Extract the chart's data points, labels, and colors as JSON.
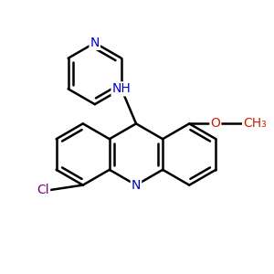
{
  "bg_color": "#ffffff",
  "bond_color": "#000000",
  "bond_width": 1.8,
  "atom_colors": {
    "N": "#0000cc",
    "O": "#cc2200",
    "Cl": "#800080"
  },
  "font_size": 10,
  "fig_size": [
    3.0,
    3.0
  ],
  "dpi": 100,
  "xlim": [
    0.0,
    1.0
  ],
  "ylim": [
    0.0,
    1.0
  ]
}
